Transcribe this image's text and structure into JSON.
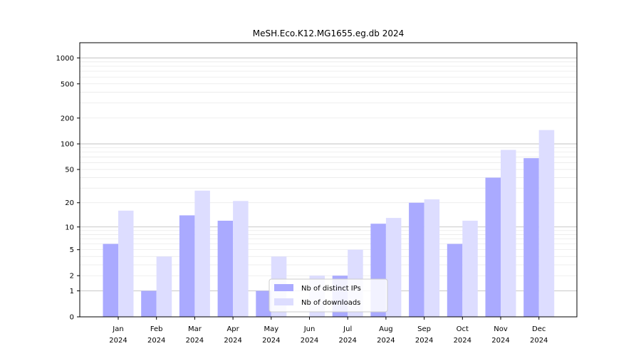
{
  "chart_data": {
    "type": "bar",
    "title": "MeSH.Eco.K12.MG1655.eg.db 2024",
    "xlabel": "",
    "ylabel": "",
    "y_scale": "symlog",
    "ylim": [
      0,
      1500
    ],
    "yticks": [
      0,
      1,
      2,
      5,
      10,
      20,
      50,
      100,
      200,
      500,
      1000
    ],
    "grid": true,
    "legend_position": "lower-center",
    "categories": [
      {
        "month": "Jan",
        "year": "2024"
      },
      {
        "month": "Feb",
        "year": "2024"
      },
      {
        "month": "Mar",
        "year": "2024"
      },
      {
        "month": "Apr",
        "year": "2024"
      },
      {
        "month": "May",
        "year": "2024"
      },
      {
        "month": "Jun",
        "year": "2024"
      },
      {
        "month": "Jul",
        "year": "2024"
      },
      {
        "month": "Aug",
        "year": "2024"
      },
      {
        "month": "Sep",
        "year": "2024"
      },
      {
        "month": "Oct",
        "year": "2024"
      },
      {
        "month": "Nov",
        "year": "2024"
      },
      {
        "month": "Dec",
        "year": "2024"
      }
    ],
    "series": [
      {
        "name": "Nb of distinct IPs",
        "color": "#aaaaff",
        "values": [
          6,
          1,
          14,
          12,
          1,
          0,
          2,
          11,
          20,
          6,
          40,
          68
        ]
      },
      {
        "name": "Nb of downloads",
        "color": "#ddddff",
        "values": [
          16,
          4,
          28,
          21,
          4,
          2,
          5,
          13,
          22,
          12,
          85,
          145
        ]
      }
    ]
  }
}
